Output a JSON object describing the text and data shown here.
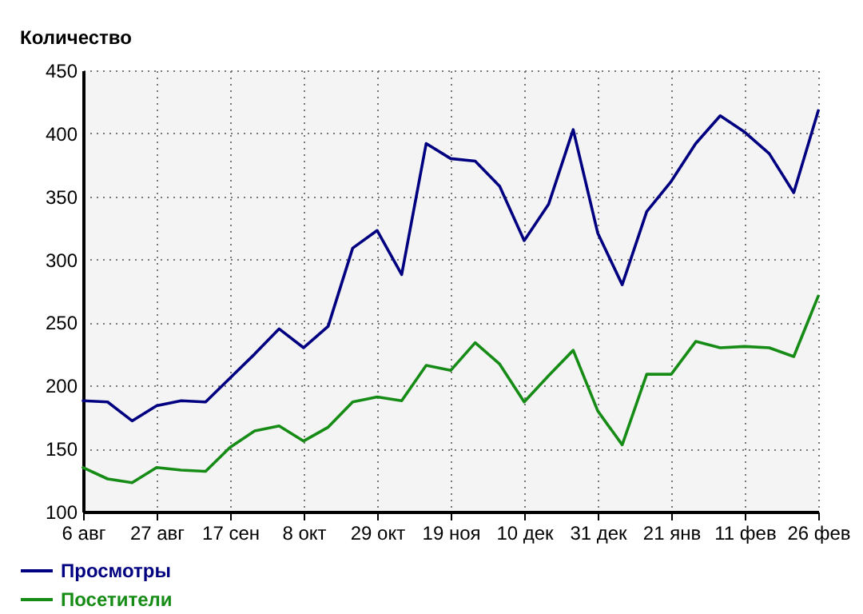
{
  "chart_data": {
    "type": "line",
    "ylabel": "Количество",
    "categories": [
      "6 авг",
      null,
      null,
      "27 авг",
      null,
      null,
      "17 сен",
      null,
      null,
      "8 окт",
      null,
      null,
      "29 окт",
      null,
      null,
      "19 ноя",
      null,
      null,
      "10 дек",
      null,
      null,
      "31 дек",
      null,
      null,
      "21 янв",
      null,
      null,
      "11 фев",
      null,
      null,
      "26 фев"
    ],
    "series": [
      {
        "name": "Просмотры",
        "color": "#000080",
        "values": [
          188,
          187,
          172,
          184,
          188,
          187,
          206,
          225,
          245,
          230,
          247,
          309,
          323,
          288,
          392,
          380,
          378,
          358,
          315,
          344,
          403,
          321,
          280,
          338,
          362,
          392,
          414,
          401,
          384,
          353,
          418
        ]
      },
      {
        "name": "Посетители",
        "color": "#168c16",
        "values": [
          135,
          126,
          123,
          135,
          133,
          132,
          151,
          164,
          168,
          156,
          167,
          187,
          191,
          188,
          216,
          212,
          234,
          217,
          187,
          208,
          228,
          180,
          153,
          209,
          209,
          235,
          230,
          231,
          230,
          223,
          271
        ]
      }
    ],
    "ylim": [
      100,
      450
    ],
    "yticks": [
      100,
      150,
      200,
      250,
      300,
      350,
      400,
      450
    ],
    "grid": true,
    "legend": "bottom",
    "line_style": "solid",
    "marker": "none"
  }
}
